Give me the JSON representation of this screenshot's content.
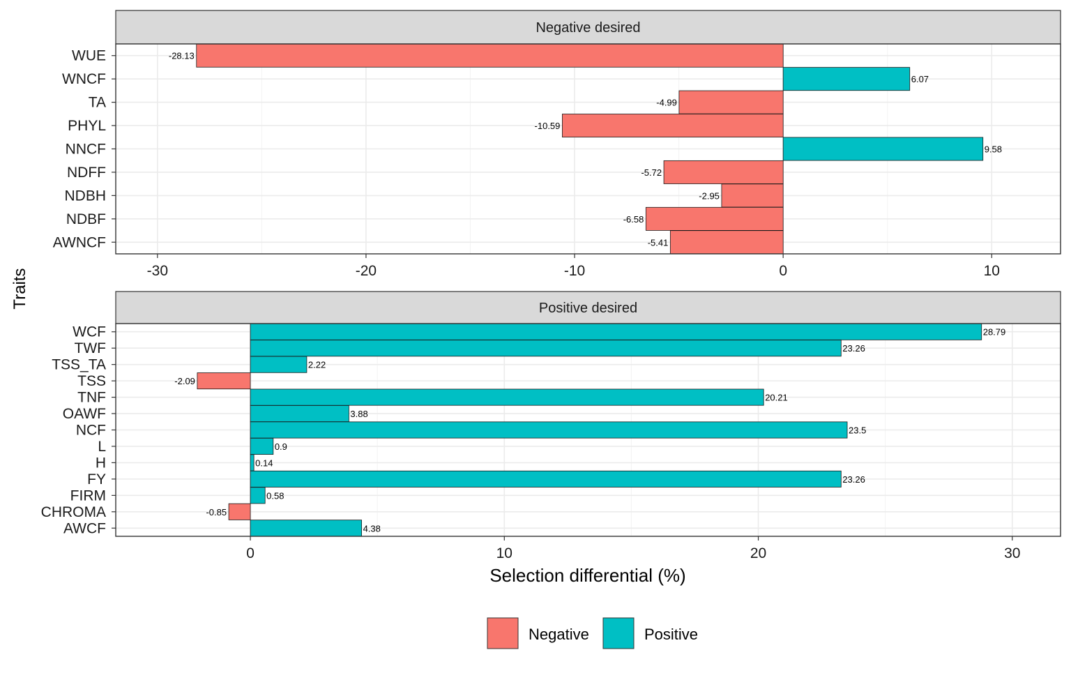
{
  "chart_data": [
    {
      "type": "bar",
      "orientation": "horizontal",
      "facet_title": "Negative desired",
      "categories": [
        "WUE",
        "WNCF",
        "TA",
        "PHYL",
        "NNCF",
        "NDFF",
        "NDBH",
        "NDBF",
        "AWNCF"
      ],
      "values": [
        -28.13,
        6.07,
        -4.99,
        -10.59,
        9.58,
        -5.72,
        -2.95,
        -6.58,
        -5.41
      ],
      "value_labels": [
        "-28.13",
        "6.07",
        "-4.99",
        "-10.59",
        "9.58",
        "-5.72",
        "-2.95",
        "-6.58",
        "-5.41"
      ],
      "xlim": [
        -32,
        13.3
      ],
      "xticks": [
        -30,
        -20,
        -10,
        0,
        10
      ],
      "xtick_labels": [
        "-30",
        "-20",
        "-10",
        "0",
        "10"
      ],
      "grid": true
    },
    {
      "type": "bar",
      "orientation": "horizontal",
      "facet_title": "Positive desired",
      "categories": [
        "WCF",
        "TWF",
        "TSS_TA",
        "TSS",
        "TNF",
        "OAWF",
        "NCF",
        "L",
        "H",
        "FY",
        "FIRM",
        "CHROMA",
        "AWCF"
      ],
      "values": [
        28.79,
        23.26,
        2.22,
        -2.09,
        20.21,
        3.88,
        23.5,
        0.9,
        0.14,
        23.26,
        0.58,
        -0.85,
        4.38
      ],
      "value_labels": [
        "28.79",
        "23.26",
        "2.22",
        "-2.09",
        "20.21",
        "3.88",
        "23.5",
        "0.9",
        "0.14",
        "23.26",
        "0.58",
        "-0.85",
        "4.38"
      ],
      "xlim": [
        -5.3,
        31.9
      ],
      "xticks": [
        0,
        10,
        20,
        30
      ],
      "xtick_labels": [
        "0",
        "10",
        "20",
        "30"
      ],
      "grid": true
    }
  ],
  "axes": {
    "ylabel": "Traits",
    "xlabel": "Selection differential (%)"
  },
  "legend": {
    "placement": "bottom",
    "items": [
      {
        "label": "Negative",
        "color": "#F8766D"
      },
      {
        "label": "Positive",
        "color": "#00BFC4"
      }
    ]
  },
  "colors": {
    "negative": "#F8766D",
    "positive": "#00BFC4",
    "strip": "#D9D9D9",
    "grid": "#EBEBEB"
  }
}
